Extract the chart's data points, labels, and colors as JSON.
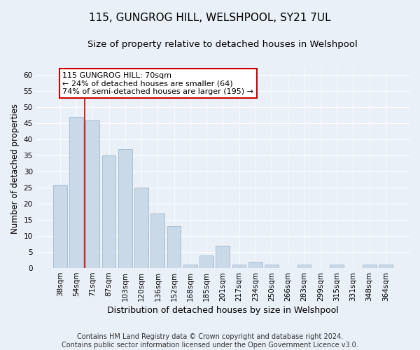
{
  "title": "115, GUNGROG HILL, WELSHPOOL, SY21 7UL",
  "subtitle": "Size of property relative to detached houses in Welshpool",
  "xlabel": "Distribution of detached houses by size in Welshpool",
  "ylabel": "Number of detached properties",
  "bar_labels": [
    "38sqm",
    "54sqm",
    "71sqm",
    "87sqm",
    "103sqm",
    "120sqm",
    "136sqm",
    "152sqm",
    "168sqm",
    "185sqm",
    "201sqm",
    "217sqm",
    "234sqm",
    "250sqm",
    "266sqm",
    "283sqm",
    "299sqm",
    "315sqm",
    "331sqm",
    "348sqm",
    "364sqm"
  ],
  "bar_values": [
    26,
    47,
    46,
    35,
    37,
    25,
    17,
    13,
    1,
    4,
    7,
    1,
    2,
    1,
    0,
    1,
    0,
    1,
    0,
    1,
    1
  ],
  "bar_color": "#c9d9e8",
  "bar_edge_color": "#a0b8cc",
  "vline_x": 1.5,
  "vline_color": "#cc0000",
  "annotation_text": "115 GUNGROG HILL: 70sqm\n← 24% of detached houses are smaller (64)\n74% of semi-detached houses are larger (195) →",
  "annotation_box_color": "#ffffff",
  "annotation_box_edge": "#cc0000",
  "ylim": [
    0,
    62
  ],
  "yticks": [
    0,
    5,
    10,
    15,
    20,
    25,
    30,
    35,
    40,
    45,
    50,
    55,
    60
  ],
  "bg_color": "#eaf0f8",
  "plot_bg_color": "#eaf0f8",
  "footer": "Contains HM Land Registry data © Crown copyright and database right 2024.\nContains public sector information licensed under the Open Government Licence v3.0.",
  "title_fontsize": 11,
  "subtitle_fontsize": 9.5,
  "xlabel_fontsize": 9,
  "ylabel_fontsize": 8.5,
  "tick_fontsize": 7.5,
  "footer_fontsize": 7,
  "annot_fontsize": 8
}
